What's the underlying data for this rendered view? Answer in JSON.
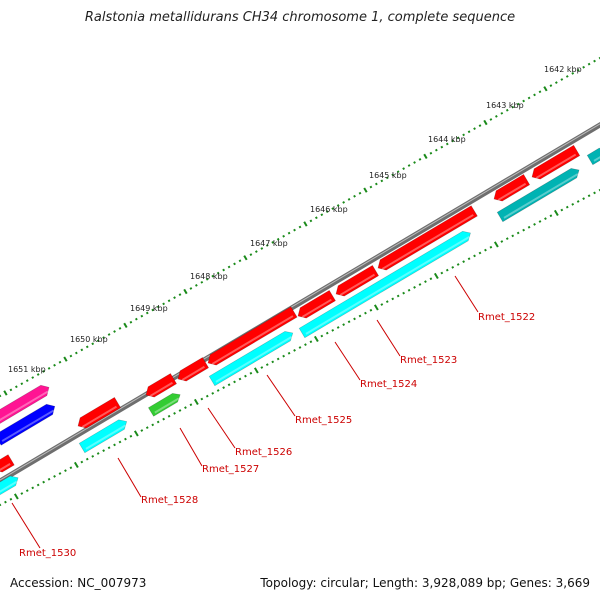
{
  "title": "Ralstonia metallidurans CH34 chromosome 1, complete sequence",
  "footer": {
    "accession": "Accession: NC_007973",
    "summary": "Topology: circular; Length: 3,928,089 bp; Genes: 3,669"
  },
  "colors": {
    "backbone": "#7f7f7f",
    "tick": "#1a8a1a",
    "label": "#cc0000",
    "red": "#ff0000",
    "cyan": "#00ffff",
    "green": "#33cc33",
    "blue": "#0000ff",
    "magenta": "#ff1493",
    "teal": "#00b3b3"
  },
  "scale_labels": [
    "1642 kbp",
    "1643 kbp",
    "1644 kbp",
    "1645 kbp",
    "1646 kbp",
    "1647 kbp",
    "1648 kbp",
    "1649 kbp",
    "1650 kbp",
    "1651 kbp"
  ],
  "gene_labels": [
    "Rmet_1522",
    "Rmet_1523",
    "Rmet_1524",
    "Rmet_1525",
    "Rmet_1526",
    "Rmet_1527",
    "Rmet_1528",
    "Rmet_1530"
  ]
}
